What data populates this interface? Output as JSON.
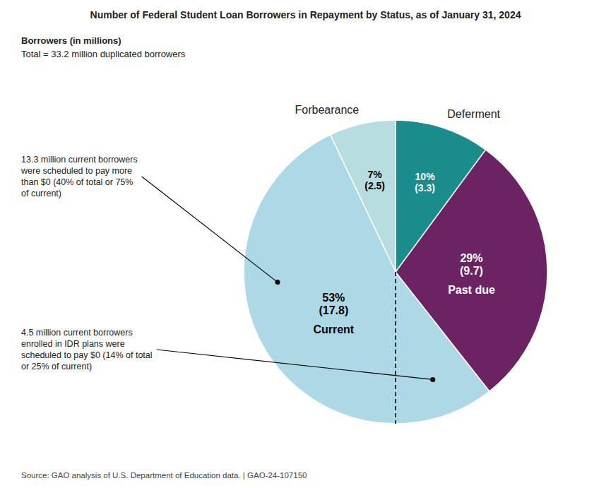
{
  "chart_data": {
    "type": "pie",
    "title": "Number of Federal Student Loan Borrowers in Repayment by Status, as of January 31, 2024",
    "subtitle": [
      "Borrowers (in millions)",
      "Total = 33.2 million duplicated borrowers"
    ],
    "source": "Source: GAO analysis of U.S. Department of Education data.  |  GAO-24-107150",
    "categories": [
      "Forbearance",
      "Current",
      "Past due",
      "Deferment"
    ],
    "values": [
      7,
      53,
      29,
      10
    ],
    "value_labels": [
      "7%\n(2.5)",
      "53%\n(17.8)",
      "29%\n(9.7)",
      "10%\n(3.3)"
    ],
    "colors": [
      "#b8dde0",
      "#add8e6",
      "#6b2363",
      "#1a8c8c"
    ],
    "data_labels": true,
    "annotations": [
      "13.3 million current borrowers\nwere scheduled to pay more\nthan $0 (40% of total or 75%\nof current)",
      "4.5 million current borrowers\nenrolled in IDR plans were\nscheduled to pay $0 (14% of total\nor 25% of current)"
    ]
  }
}
